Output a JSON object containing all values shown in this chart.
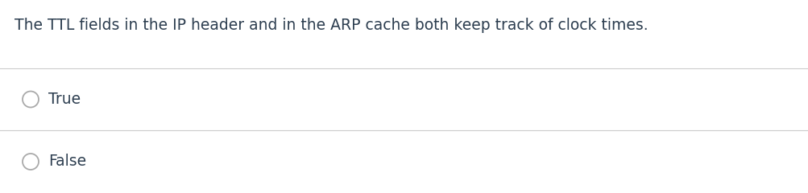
{
  "question": "The TTL fields in the IP header and in the ARP cache both keep track of clock times.",
  "options": [
    "True",
    "False"
  ],
  "background_color": "#ffffff",
  "text_color": "#2d3e50",
  "line_color": "#cccccc",
  "question_fontsize": 13.5,
  "option_fontsize": 13.5,
  "circle_color": "#aaaaaa",
  "circle_linewidth": 1.3
}
